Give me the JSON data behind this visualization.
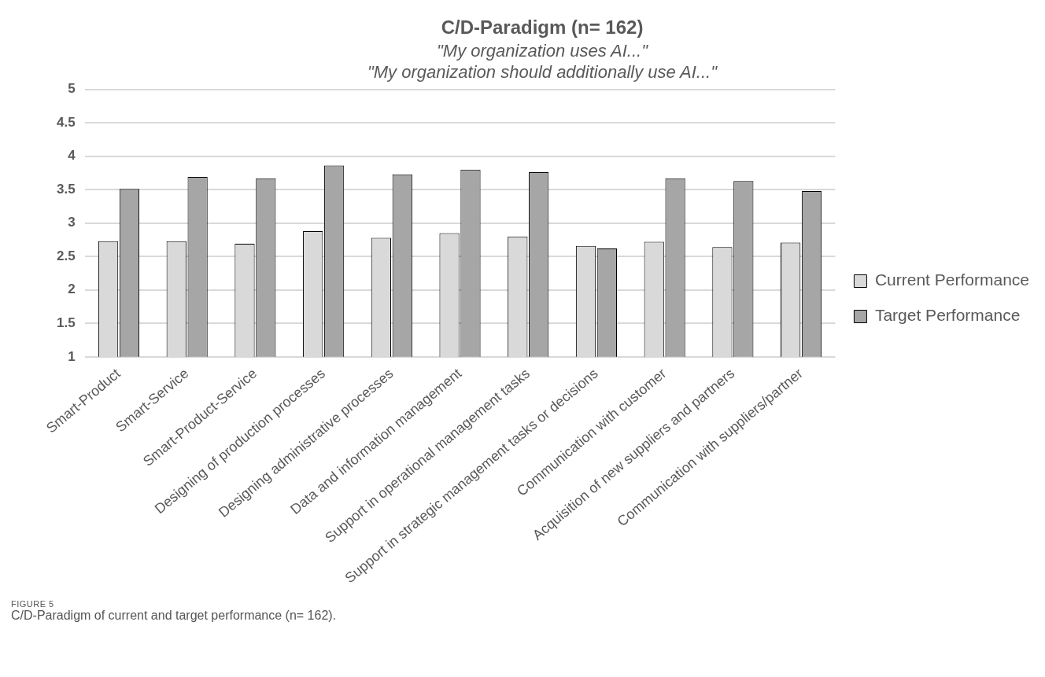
{
  "chart_data": {
    "type": "bar",
    "title": "C/D-Paradigm (n= 162)",
    "subtitle": "\"My organization uses AI...\"\n\"My organization should additionally use AI...\"",
    "categories": [
      "Smart-Product",
      "Smart-Service",
      "Smart-Product-Service",
      "Designing of production processes",
      "Designing administrative processes",
      "Data and information management",
      "Support in operational management tasks",
      "Support in strategic management tasks or decisions",
      "Communication with customer",
      "Acquisition of new suppliers and partners",
      "Communication with suppliers/partner"
    ],
    "series": [
      {
        "name": "Current Performance",
        "color": "#d9d9d9",
        "values": [
          2.73,
          2.73,
          2.69,
          2.88,
          2.78,
          2.85,
          2.8,
          2.66,
          2.72,
          2.64,
          2.71
        ]
      },
      {
        "name": "Target Performance",
        "color": "#a6a6a6",
        "values": [
          3.51,
          3.69,
          3.67,
          3.86,
          3.73,
          3.8,
          3.76,
          2.62,
          3.67,
          3.63,
          3.48
        ]
      }
    ],
    "ylim": [
      1,
      5
    ],
    "yticks": [
      1,
      1.5,
      2,
      2.5,
      3,
      3.5,
      4,
      4.5,
      5
    ],
    "grid": "y",
    "legend": "right",
    "annotations": [
      "FIGURE 5",
      "C/D-Paradigm of current and target performance (n= 162)."
    ]
  }
}
